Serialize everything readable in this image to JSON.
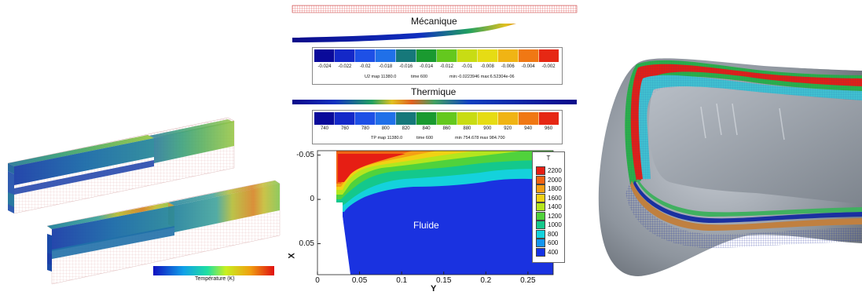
{
  "left_panel": {
    "colorbar_label": "Température (K)"
  },
  "center_panel": {
    "mechanics_title": "Mécanique",
    "mechanics_colorbar": {
      "ticks": [
        "-0.024",
        "-0.022",
        "-0.02",
        "-0.018",
        "-0.016",
        "-0.014",
        "-0.012",
        "-0.01",
        "-0.008",
        "-0.006",
        "-0.004",
        "-0.002"
      ],
      "info_map": "U2 map 11380.0",
      "info_time": "time 600",
      "info_range": "min:-0.0223946 max:6.52304e-06",
      "colors": [
        "#0a0a9a",
        "#1428c8",
        "#1e50e6",
        "#2070e8",
        "#16787a",
        "#1a9a30",
        "#64c81e",
        "#c8dc14",
        "#e6dc14",
        "#f0b414",
        "#f07814",
        "#e62814"
      ]
    },
    "thermal_title": "Thermique",
    "thermal_colorbar": {
      "ticks": [
        "740",
        "760",
        "780",
        "800",
        "820",
        "840",
        "860",
        "880",
        "900",
        "920",
        "940",
        "960"
      ],
      "info_map": "TP map 11380.0",
      "info_time": "time 600",
      "info_range": "min 754.678 max 984.700",
      "colors": [
        "#0a0a9a",
        "#1428c8",
        "#1e50e6",
        "#2070e8",
        "#16787a",
        "#1a9a30",
        "#64c81e",
        "#c8dc14",
        "#e6dc14",
        "#f0b414",
        "#f07814",
        "#e62814"
      ]
    },
    "contour_plot": {
      "x_ticks": [
        "0",
        "0.05",
        "0.1",
        "0.15",
        "0.2",
        "0.25"
      ],
      "y_ticks": [
        "-0.05",
        "0",
        "0.05"
      ],
      "x_axis_label": "Y",
      "y_axis_label": "X",
      "region_label": "Fluide",
      "legend": {
        "title": "T",
        "levels": [
          "2200",
          "2000",
          "1800",
          "1600",
          "1400",
          "1200",
          "1000",
          "800",
          "600",
          "400"
        ],
        "colors": [
          "#e61e14",
          "#f06414",
          "#f5a014",
          "#f0d214",
          "#b4e61e",
          "#50d23c",
          "#14c88c",
          "#14d2dc",
          "#1496f0",
          "#1432e6"
        ]
      }
    }
  }
}
